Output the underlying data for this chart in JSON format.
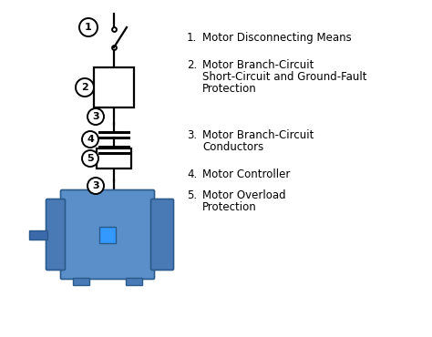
{
  "background_color": "#ffffff",
  "line_color": "#000000",
  "motor_body_color": "#5b8fc9",
  "motor_dark_color": "#4a7ab5",
  "motor_shaft_color": "#3a6aaa",
  "motor_nameplate_color": "#3399ff",
  "legend_items": [
    [
      "1.",
      "Motor Disconnecting Means"
    ],
    [
      "2.",
      "Motor Branch-Circuit\nShort-Circuit and Ground-Fault\nProtection"
    ],
    [
      "3.",
      "Motor Branch-Circuit\nConductors"
    ],
    [
      "4.",
      "Motor Controller"
    ],
    [
      "5.",
      "Motor Overload\nProtection"
    ]
  ]
}
